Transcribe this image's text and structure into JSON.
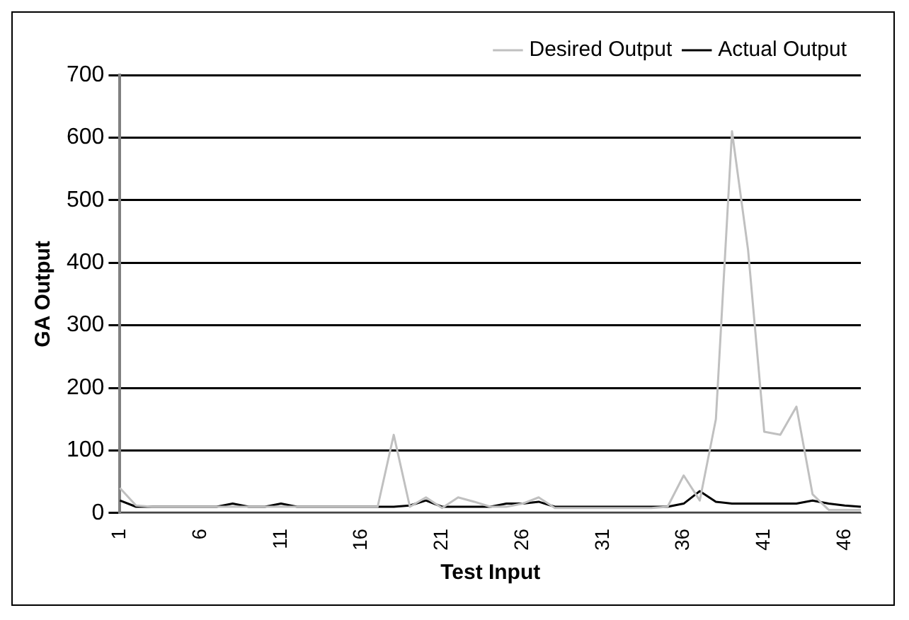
{
  "chart_data": {
    "type": "line",
    "xlabel": "Test Input",
    "ylabel": "GA Output",
    "categories": [
      "1",
      null,
      null,
      null,
      null,
      "6",
      null,
      null,
      null,
      null,
      "11",
      null,
      null,
      null,
      null,
      "16",
      null,
      null,
      null,
      null,
      "21",
      null,
      null,
      null,
      null,
      "26",
      null,
      null,
      null,
      null,
      "31",
      null,
      null,
      null,
      null,
      "36",
      null,
      null,
      null,
      null,
      "41",
      null,
      null,
      null,
      null,
      "46",
      null
    ],
    "series": [
      {
        "name": "Desired Output",
        "color": "#c0c0c0",
        "values": [
          40,
          12,
          10,
          10,
          10,
          10,
          10,
          10,
          10,
          10,
          10,
          10,
          10,
          10,
          10,
          10,
          10,
          125,
          10,
          25,
          8,
          25,
          18,
          10,
          10,
          15,
          25,
          8,
          8,
          8,
          8,
          8,
          8,
          8,
          10,
          60,
          20,
          150,
          610,
          420,
          130,
          125,
          170,
          30,
          5,
          5,
          5
        ]
      },
      {
        "name": "Actual Output",
        "color": "#000000",
        "values": [
          20,
          10,
          10,
          10,
          10,
          10,
          10,
          15,
          10,
          10,
          15,
          10,
          10,
          10,
          10,
          10,
          10,
          10,
          12,
          20,
          10,
          10,
          10,
          10,
          15,
          15,
          18,
          10,
          10,
          10,
          10,
          10,
          10,
          10,
          10,
          15,
          35,
          18,
          15,
          15,
          15,
          15,
          15,
          20,
          15,
          12,
          10
        ]
      }
    ],
    "ylim": [
      0,
      700
    ],
    "yticks": [
      0,
      100,
      200,
      300,
      400,
      500,
      600,
      700
    ],
    "grid": "y",
    "legend": "top right",
    "marker": "none",
    "line_style": "solid"
  }
}
